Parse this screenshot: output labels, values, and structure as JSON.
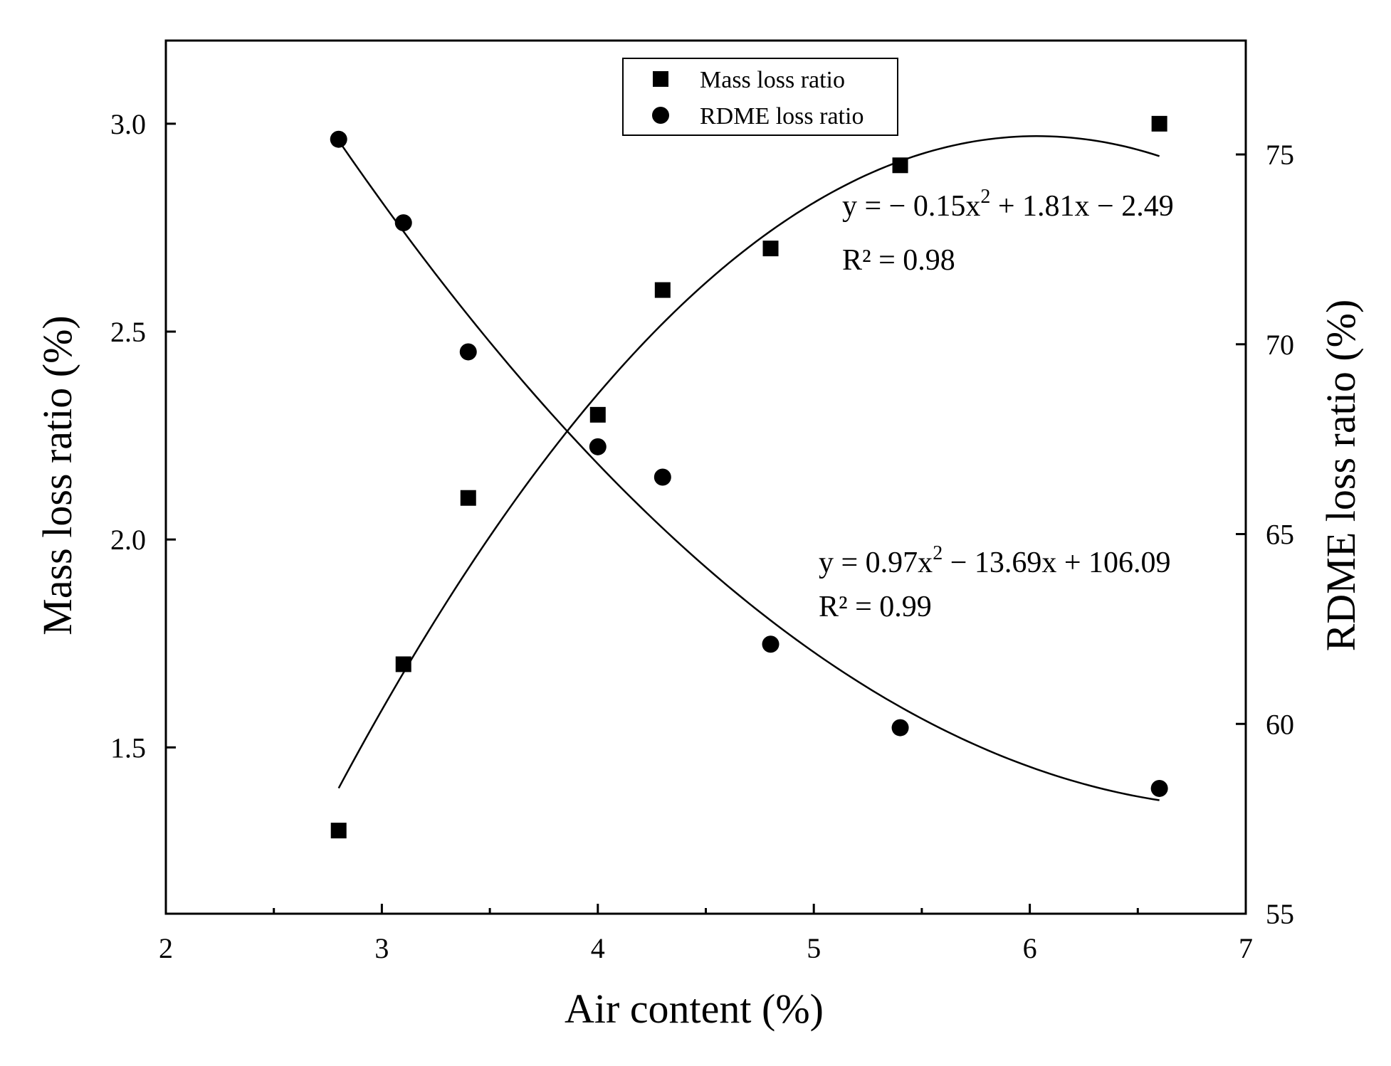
{
  "chart_data": {
    "type": "scatter",
    "xlabel": "Air content (%)",
    "ylabel_left": "Mass loss ratio (%)",
    "ylabel_right": "RDME loss ratio (%)",
    "xlim": [
      2,
      7
    ],
    "ylim_left": [
      1.1,
      3.2
    ],
    "ylim_right": [
      55,
      78
    ],
    "x_ticks": [
      2,
      3,
      4,
      5,
      6,
      7
    ],
    "y_left_ticks": [
      1.5,
      2.0,
      2.5,
      3.0
    ],
    "y_left_tick_labels": [
      "1.5",
      "2.0",
      "2.5",
      "3.0"
    ],
    "y_right_ticks": [
      55,
      60,
      65,
      70,
      75
    ],
    "legend_position": "top-center",
    "grid": false,
    "series": [
      {
        "name": "Mass loss ratio",
        "axis": "left",
        "marker": "square",
        "x": [
          2.8,
          3.1,
          3.4,
          4.0,
          4.3,
          4.8,
          5.4,
          6.6
        ],
        "y": [
          1.3,
          1.7,
          2.1,
          2.3,
          2.6,
          2.7,
          2.9,
          3.0
        ],
        "fit": {
          "a": -0.15,
          "b": 1.81,
          "c": -2.49,
          "x_range": [
            2.8,
            6.6
          ]
        },
        "equation": "y = − 0.15x",
        "equation_sup": "2",
        "equation_rest": " + 1.81x − 2.49",
        "r2": "R² = 0.98"
      },
      {
        "name": "RDME loss ratio",
        "axis": "right",
        "marker": "circle",
        "x": [
          2.8,
          3.1,
          3.4,
          4.0,
          4.3,
          4.8,
          5.4,
          6.6
        ],
        "y": [
          75.4,
          73.2,
          69.8,
          67.3,
          66.5,
          62.1,
          59.9,
          58.3
        ],
        "fit": {
          "a": 0.97,
          "b": -13.69,
          "c": 106.09,
          "x_range": [
            2.8,
            6.6
          ]
        },
        "equation": "y = 0.97x",
        "equation_sup": "2",
        "equation_rest": " − 13.69x + 106.09",
        "r2": "R² = 0.99"
      }
    ],
    "colors": {
      "marks": "#000000",
      "background": "#ffffff"
    }
  }
}
